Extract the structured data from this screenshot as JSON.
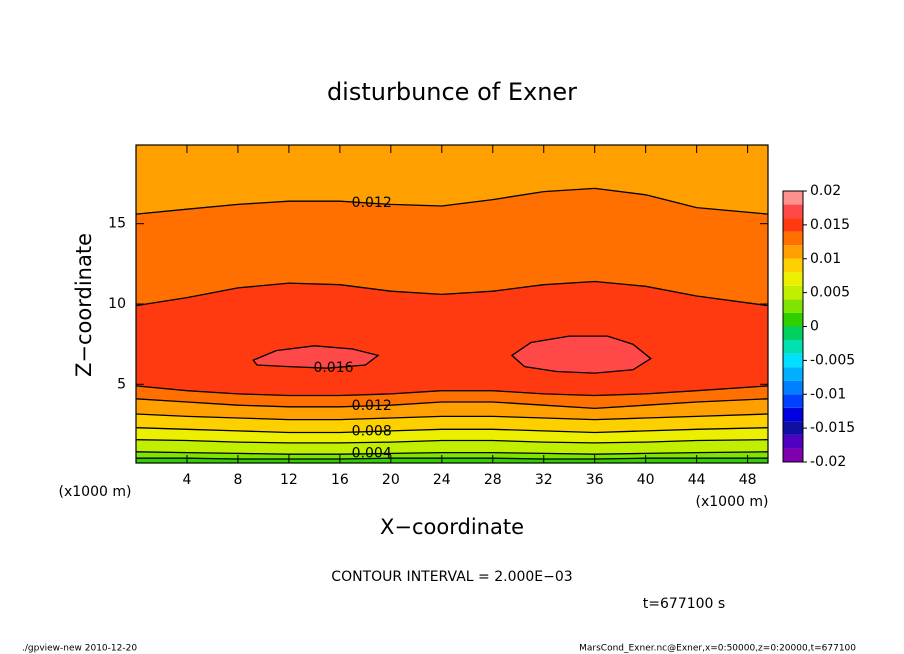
{
  "chart_data": {
    "type": "contour",
    "title": "disturbunce of Exner",
    "xlabel": "X−coordinate",
    "ylabel": "Z−coordinate",
    "x_unit_left": "(x1000 m)",
    "x_unit_right": "(x1000 m)",
    "contour_interval": "CONTOUR INTERVAL = 2.000E−03",
    "time": "t=677100 s",
    "footer_left": "./gpview-new  2010-12-20",
    "footer_right": "MarsCond_Exner.nc@Exner,x=0:50000,z=0:20000,t=677100",
    "xlim": [
      0,
      49.6
    ],
    "ylim": [
      0.1,
      19.9
    ],
    "xticks": [
      4,
      8,
      12,
      16,
      20,
      24,
      28,
      32,
      36,
      40,
      44,
      48
    ],
    "yticks": [
      5,
      10,
      15
    ],
    "levels": [
      -0.02,
      -0.018,
      -0.016,
      -0.014,
      -0.012,
      -0.01,
      -0.008,
      -0.006,
      -0.004,
      -0.002,
      0,
      0.002,
      0.004,
      0.006,
      0.008,
      0.01,
      0.012,
      0.014,
      0.016,
      0.018,
      0.02
    ],
    "colors": [
      "#8000b0",
      "#5000c0",
      "#1010a0",
      "#0000e0",
      "#0040ff",
      "#0080ff",
      "#00b0ff",
      "#00e0ff",
      "#00e0b0",
      "#00d060",
      "#30d000",
      "#80e400",
      "#c0f000",
      "#ecf000",
      "#ffd000",
      "#ffa000",
      "#ff7000",
      "#ff3a10",
      "#ff4848",
      "#ff9090"
    ],
    "colorbar_ticks": [
      0.02,
      0.015,
      0.01,
      0.005,
      0,
      -0.005,
      -0.01,
      -0.015,
      -0.02
    ],
    "x": [
      0,
      4,
      8,
      12,
      16,
      20,
      24,
      28,
      32,
      36,
      40,
      44,
      49.6
    ],
    "contours": [
      {
        "level": 0.002,
        "lower": [
          0.4,
          0.4,
          0.35,
          0.35,
          0.35,
          0.4,
          0.4,
          0.4,
          0.35,
          0.35,
          0.4,
          0.4,
          0.4
        ],
        "upper": null
      },
      {
        "level": 0.004,
        "lower": [
          0.8,
          0.75,
          0.7,
          0.65,
          0.65,
          0.7,
          0.75,
          0.75,
          0.7,
          0.65,
          0.7,
          0.75,
          0.8
        ],
        "upper": null,
        "label_lower": true
      },
      {
        "level": 0.006,
        "lower": [
          1.55,
          1.5,
          1.4,
          1.35,
          1.35,
          1.4,
          1.5,
          1.5,
          1.4,
          1.35,
          1.4,
          1.5,
          1.55
        ],
        "upper": null
      },
      {
        "level": 0.008,
        "lower": [
          2.3,
          2.2,
          2.1,
          2.0,
          2.0,
          2.1,
          2.2,
          2.2,
          2.1,
          2.0,
          2.1,
          2.2,
          2.3
        ],
        "upper": null,
        "label_lower": true
      },
      {
        "level": 0.01,
        "lower": [
          3.15,
          3.0,
          2.9,
          2.8,
          2.8,
          2.9,
          3.0,
          3.0,
          2.9,
          2.8,
          2.9,
          3.0,
          3.15
        ],
        "upper": null
      },
      {
        "level": 0.012,
        "lower": [
          4.1,
          3.9,
          3.7,
          3.6,
          3.6,
          3.7,
          3.9,
          3.9,
          3.7,
          3.5,
          3.7,
          3.9,
          4.1
        ],
        "upper": [
          15.6,
          15.9,
          16.2,
          16.4,
          16.4,
          16.2,
          16.1,
          16.5,
          17.0,
          17.2,
          16.8,
          16.0,
          15.6
        ],
        "label_lower": true,
        "label_upper": true
      },
      {
        "level": 0.014,
        "lower": [
          4.9,
          4.6,
          4.4,
          4.3,
          4.3,
          4.4,
          4.6,
          4.6,
          4.4,
          4.3,
          4.4,
          4.6,
          4.9
        ],
        "upper": [
          9.9,
          10.4,
          11.0,
          11.3,
          11.2,
          10.8,
          10.6,
          10.8,
          11.2,
          11.4,
          11.1,
          10.5,
          9.9
        ]
      }
    ],
    "closed_contours": [
      {
        "level": 0.016,
        "x": [
          9.2,
          11,
          14,
          17,
          19,
          18,
          15,
          12,
          9.5
        ],
        "y": [
          6.5,
          7.1,
          7.4,
          7.2,
          6.8,
          6.2,
          6.0,
          6.1,
          6.2
        ],
        "labeled": true
      },
      {
        "level": 0.016,
        "x": [
          29.5,
          31,
          34,
          37,
          39,
          40.4,
          39,
          36,
          33,
          30.5
        ],
        "y": [
          6.8,
          7.6,
          8.0,
          8.0,
          7.5,
          6.6,
          5.9,
          5.7,
          5.8,
          6.1
        ]
      }
    ]
  }
}
